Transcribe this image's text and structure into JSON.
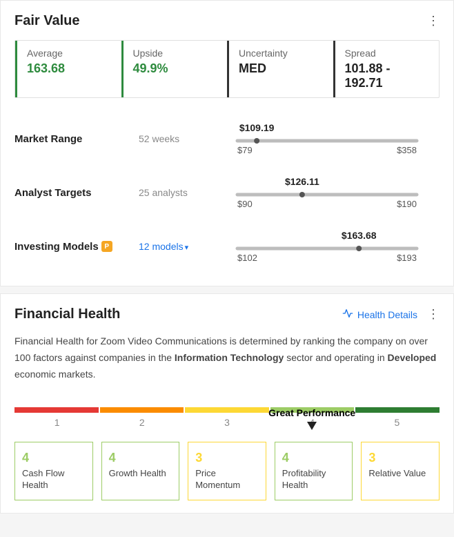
{
  "fair_value": {
    "title": "Fair Value",
    "cells": [
      {
        "label": "Average",
        "value": "163.68",
        "accent": "green"
      },
      {
        "label": "Upside",
        "value": "49.9%",
        "accent": "green"
      },
      {
        "label": "Uncertainty",
        "value": "MED",
        "accent": "dark"
      },
      {
        "label": "Spread",
        "value": "101.88 - 192.71",
        "accent": "dark"
      }
    ],
    "ranges": [
      {
        "name": "Market Range",
        "sub": "52 weeks",
        "sub_link": false,
        "badge": false,
        "low": 79,
        "high": 358,
        "mark": 109.19,
        "low_label": "$79",
        "high_label": "$358",
        "mark_label": "$109.19"
      },
      {
        "name": "Analyst Targets",
        "sub": "25 analysts",
        "sub_link": false,
        "badge": false,
        "low": 90,
        "high": 190,
        "mark": 126.11,
        "low_label": "$90",
        "high_label": "$190",
        "mark_label": "$126.11"
      },
      {
        "name": "Investing Models",
        "sub": "12 models",
        "sub_link": true,
        "badge": true,
        "low": 102,
        "high": 193,
        "mark": 163.68,
        "low_label": "$102",
        "high_label": "$193",
        "mark_label": "$163.68"
      }
    ]
  },
  "financial_health": {
    "title": "Financial Health",
    "details_link": "Health Details",
    "desc_parts": [
      "Financial Health for Zoom Video Communications is determined by ranking the company on over 100 factors against companies in the ",
      "Information Technology",
      " sector and operating in ",
      "Developed",
      " economic markets."
    ],
    "performance": {
      "label": "Great Performance",
      "score": 4,
      "segments": [
        {
          "n": "1",
          "color": "#e53935"
        },
        {
          "n": "2",
          "color": "#fb8c00"
        },
        {
          "n": "3",
          "color": "#fdd835"
        },
        {
          "n": "4",
          "color": "#9ccc65"
        },
        {
          "n": "5",
          "color": "#2e7d32"
        }
      ]
    },
    "boxes": [
      {
        "score": "4",
        "label": "Cash Flow Health",
        "color": "#9ccc65"
      },
      {
        "score": "4",
        "label": "Growth Health",
        "color": "#9ccc65"
      },
      {
        "score": "3",
        "label": "Price Momentum",
        "color": "#fdd835"
      },
      {
        "score": "4",
        "label": "Profitability Health",
        "color": "#9ccc65"
      },
      {
        "score": "3",
        "label": "Relative Value",
        "color": "#fdd835"
      }
    ]
  }
}
